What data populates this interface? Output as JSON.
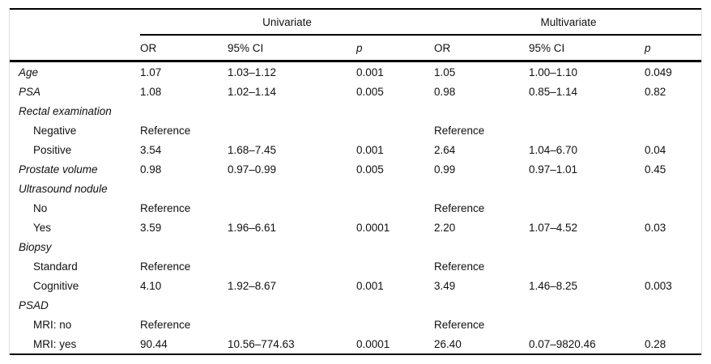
{
  "table": {
    "group_headers": [
      {
        "label": "Univariate"
      },
      {
        "label": "Multivariate"
      }
    ],
    "column_headers": {
      "uni_or": "OR",
      "uni_ci": "95% CI",
      "uni_p": "p",
      "multi_or": "OR",
      "multi_ci": "95% CI",
      "multi_p": "p"
    },
    "rows": [
      {
        "label": "Age",
        "style": "variable",
        "cells": [
          "1.07",
          "1.03–1.12",
          "0.001",
          "1.05",
          "1.00–1.10",
          "0.049"
        ]
      },
      {
        "label": "PSA",
        "style": "variable",
        "cells": [
          "1.08",
          "1.02–1.14",
          "0.005",
          "0.98",
          "0.85–1.14",
          "0.82"
        ]
      },
      {
        "label": "Rectal examination",
        "style": "variable",
        "cells": [
          "",
          "",
          "",
          "",
          "",
          ""
        ]
      },
      {
        "label": "Negative",
        "style": "sub",
        "cells": [
          "Reference",
          "",
          "",
          "Reference",
          "",
          ""
        ]
      },
      {
        "label": "Positive",
        "style": "sub",
        "cells": [
          "3.54",
          "1.68–7.45",
          "0.001",
          "2.64",
          "1.04–6.70",
          "0.04"
        ]
      },
      {
        "label": "Prostate volume",
        "style": "variable",
        "cells": [
          "0.98",
          "0.97–0.99",
          "0.005",
          "0.99",
          "0.97–1.01",
          "0.45"
        ]
      },
      {
        "label": "Ultrasound nodule",
        "style": "variable",
        "cells": [
          "",
          "",
          "",
          "",
          "",
          ""
        ]
      },
      {
        "label": "No",
        "style": "sub",
        "cells": [
          "Reference",
          "",
          "",
          "Reference",
          "",
          ""
        ]
      },
      {
        "label": "Yes",
        "style": "sub",
        "cells": [
          "3.59",
          "1.96–6.61",
          "0.0001",
          "2.20",
          "1.07–4.52",
          "0.03"
        ]
      },
      {
        "label": "Biopsy",
        "style": "variable",
        "cells": [
          "",
          "",
          "",
          "",
          "",
          ""
        ]
      },
      {
        "label": "Standard",
        "style": "sub",
        "cells": [
          "Reference",
          "",
          "",
          "Reference",
          "",
          ""
        ]
      },
      {
        "label": "Cognitive",
        "style": "sub",
        "cells": [
          "4.10",
          "1.92–8.67",
          "0.001",
          "3.49",
          "1.46–8.25",
          "0.003"
        ]
      },
      {
        "label": "PSAD",
        "style": "variable",
        "cells": [
          "",
          "",
          "",
          "",
          "",
          ""
        ]
      },
      {
        "label": "MRI: no",
        "style": "sub",
        "cells": [
          "Reference",
          "",
          "",
          "Reference",
          "",
          ""
        ]
      },
      {
        "label": "MRI: yes",
        "style": "sub",
        "cells": [
          "90.44",
          "10.56–774.63",
          "0.0001",
          "26.40",
          "0.07–9820.46",
          "0.28"
        ]
      }
    ]
  },
  "colors": {
    "rule": "#000000",
    "frame": "#e2e2e2",
    "text": "#111111",
    "background": "#ffffff"
  }
}
